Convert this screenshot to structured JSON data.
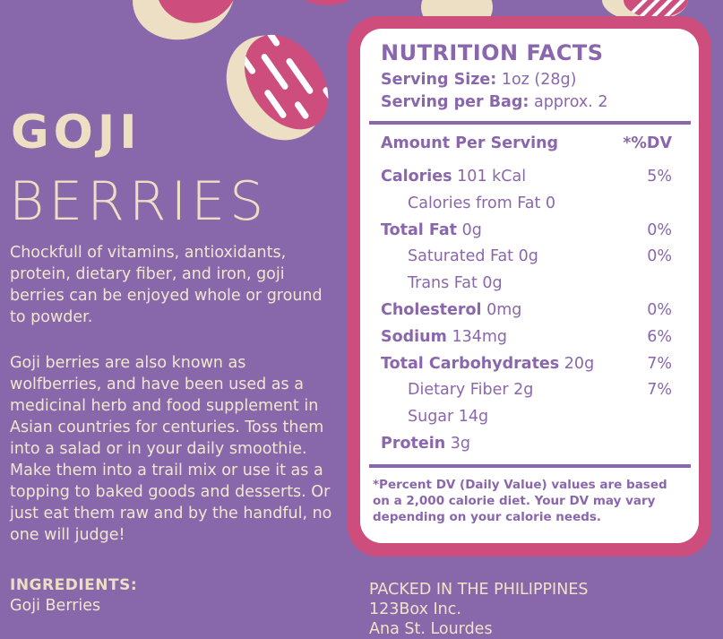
{
  "product": {
    "title_bold": "GOJI",
    "title_light": "BERRIES",
    "description": [
      "Chockfull of vitamins, antioxidants, protein, dietary fiber, and iron, goji berries can be enjoyed whole or ground to powder.",
      "Goji berries are also known as wolfberries, and have been used as a medicinal herb and food supplement in Asian countries for centuries. Toss them into a salad or in your daily smoothie. Make them into a trail mix or use it as a topping to baked goods and desserts. Or just eat them raw and by the handful, no one will judge!"
    ],
    "ingredients_label": "INGREDIENTS:",
    "ingredients": "Goji Berries"
  },
  "nutrition": {
    "title": "NUTRITION FACTS",
    "serving_size_label": "Serving Size:",
    "serving_size": "1oz (28g)",
    "servings_label": "Serving per Bag:",
    "servings": "approx. 2",
    "header_label": "Amount Per Serving",
    "header_dv": "*%DV",
    "rows": [
      {
        "name": "Calories",
        "amount": "101 kCal",
        "dv": "5%",
        "indent": false
      },
      {
        "name": "",
        "amount": "Calories from Fat 0",
        "dv": "",
        "indent": true
      },
      {
        "name": "Total Fat",
        "amount": "0g",
        "dv": "0%",
        "indent": false
      },
      {
        "name": "",
        "amount": "Saturated Fat 0g",
        "dv": "0%",
        "indent": true
      },
      {
        "name": "",
        "amount": "Trans Fat 0g",
        "dv": "",
        "indent": true
      },
      {
        "name": "Cholesterol",
        "amount": "0mg",
        "dv": "0%",
        "indent": false
      },
      {
        "name": "Sodium",
        "amount": "134mg",
        "dv": "6%",
        "indent": false
      },
      {
        "name": "Total Carbohydrates",
        "amount": "20g",
        "dv": "7%",
        "indent": false
      },
      {
        "name": "",
        "amount": "Dietary Fiber 2g",
        "dv": "7%",
        "indent": true
      },
      {
        "name": "",
        "amount": "Sugar 14g",
        "dv": "",
        "indent": true
      },
      {
        "name": "Protein",
        "amount": "3g",
        "dv": "",
        "indent": false
      }
    ],
    "footnote": "*Percent DV (Daily Value) values are based on a 2,000 calorie diet. Your DV may vary depending on your calorie needs."
  },
  "packer": {
    "line1": "PACKED IN THE PHILIPPINES",
    "line2": "123Box Inc.",
    "line3": "Ana St. Lourdes"
  },
  "colors": {
    "background": "#8868ab",
    "accent_pink": "#cd4d7d",
    "cream": "#ecdfc3",
    "label_text": "#8a67ad"
  }
}
